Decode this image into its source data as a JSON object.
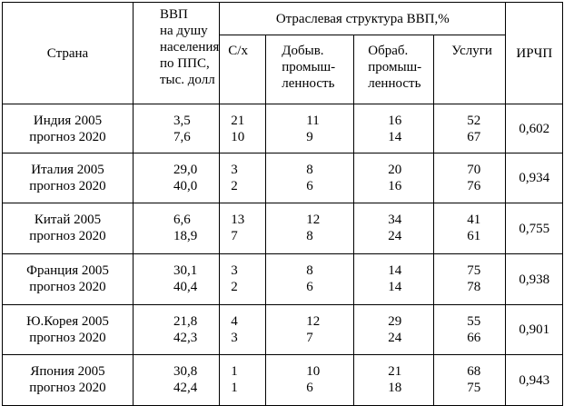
{
  "header": {
    "country": "Страна",
    "gdp_lines": [
      "ВВП",
      "на душу",
      "населения",
      "по ППС,",
      "тыс. долл"
    ],
    "structure": "Отраслевая структура ВВП,%",
    "agriculture": "С/х",
    "mining_lines": [
      "Добыв.",
      "промыш-",
      "ленность"
    ],
    "manufacturing_lines": [
      "Обраб.",
      "промыш-",
      "ленность"
    ],
    "services": "Услуги",
    "ichr": "ИРЧП"
  },
  "rows": [
    {
      "country": [
        "Индия 2005",
        "прогноз 2020"
      ],
      "gdp": [
        "3,5",
        "7,6"
      ],
      "agri": [
        "21",
        "10"
      ],
      "mining": [
        "11",
        "9"
      ],
      "manuf": [
        "16",
        "14"
      ],
      "services": [
        "52",
        "67"
      ],
      "ichr": "0,602"
    },
    {
      "country": [
        "Италия 2005",
        "прогноз 2020"
      ],
      "gdp": [
        "29,0",
        "40,0"
      ],
      "agri": [
        "3",
        "2"
      ],
      "mining": [
        "8",
        "6"
      ],
      "manuf": [
        "20",
        "16"
      ],
      "services": [
        "70",
        "76"
      ],
      "ichr": "0,934"
    },
    {
      "country": [
        "Китай 2005",
        "прогноз 2020"
      ],
      "gdp": [
        "6,6",
        "18,9"
      ],
      "agri": [
        "13",
        "7"
      ],
      "mining": [
        "12",
        "8"
      ],
      "manuf": [
        "34",
        "24"
      ],
      "services": [
        "41",
        "61"
      ],
      "ichr": "0,755"
    },
    {
      "country": [
        "Франция 2005",
        "прогноз 2020"
      ],
      "gdp": [
        "30,1",
        "40,4"
      ],
      "agri": [
        "3",
        "2"
      ],
      "mining": [
        "8",
        "6"
      ],
      "manuf": [
        "14",
        "14"
      ],
      "services": [
        "75",
        "78"
      ],
      "ichr": "0,938"
    },
    {
      "country": [
        "Ю.Корея 2005",
        "прогноз 2020"
      ],
      "gdp": [
        "21,8",
        "42,3"
      ],
      "agri": [
        "4",
        "3"
      ],
      "mining": [
        "12",
        "7"
      ],
      "manuf": [
        "29",
        "24"
      ],
      "services": [
        "55",
        "66"
      ],
      "ichr": "0,901"
    },
    {
      "country": [
        "Япония 2005",
        "прогноз 2020"
      ],
      "gdp": [
        "30,8",
        "42,4"
      ],
      "agri": [
        "1",
        "1"
      ],
      "mining": [
        "10",
        "6"
      ],
      "manuf": [
        "21",
        "18"
      ],
      "services": [
        "68",
        "75"
      ],
      "ichr": "0,943"
    }
  ]
}
